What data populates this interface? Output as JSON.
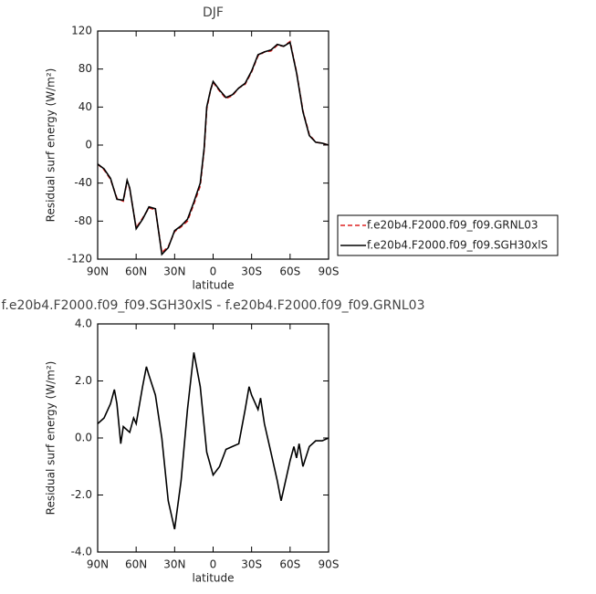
{
  "chart_data": [
    {
      "type": "line",
      "title": "DJF",
      "xlabel": "latitude",
      "ylabel": "Residual surf energy (W/m²)",
      "xlim": [
        90,
        -90
      ],
      "xticks": [
        {
          "value": 90,
          "label": "90N"
        },
        {
          "value": 60,
          "label": "60N"
        },
        {
          "value": 30,
          "label": "30N"
        },
        0,
        {
          "value": -30,
          "label": "30S"
        },
        {
          "value": -60,
          "label": "60S"
        },
        {
          "value": -90,
          "label": "90S"
        }
      ],
      "ylim": [
        -120,
        120
      ],
      "yticks": [
        -120,
        -80,
        -40,
        0,
        40,
        80,
        120
      ],
      "legend": "right",
      "x": [
        90,
        85,
        80,
        75,
        70,
        67,
        65,
        60,
        55,
        50,
        45,
        40,
        35,
        30,
        25,
        20,
        15,
        10,
        7,
        5,
        2,
        0,
        -5,
        -10,
        -15,
        -20,
        -25,
        -30,
        -35,
        -40,
        -45,
        -50,
        -55,
        -60,
        -65,
        -70,
        -75,
        -80,
        -85,
        -90
      ],
      "series": [
        {
          "name": "f.e20b4.F2000.f09_f09.GRNL03",
          "color": "#dd2222",
          "dashed": true,
          "values": [
            -20,
            -26,
            -36,
            -56,
            -59,
            -38,
            -46,
            -87,
            -77,
            -66,
            -68,
            -113,
            -107,
            -91,
            -86,
            -80,
            -62,
            -43,
            -5,
            38,
            58,
            66,
            57,
            49,
            52,
            60,
            64,
            77,
            94,
            98,
            99,
            105,
            104,
            109,
            77,
            36,
            11,
            3,
            2,
            0
          ]
        },
        {
          "name": "f.e20b4.F2000.f09_f09.SGH30xlS",
          "color": "#000000",
          "dashed": false,
          "values": [
            -20,
            -25,
            -35,
            -57,
            -58,
            -37,
            -45,
            -88,
            -78,
            -65,
            -67,
            -115,
            -108,
            -90,
            -85,
            -78,
            -60,
            -40,
            -3,
            40,
            58,
            67,
            58,
            50,
            53,
            60,
            65,
            78,
            95,
            98,
            100,
            106,
            104,
            108,
            76,
            35,
            10,
            3,
            2,
            0
          ]
        }
      ]
    },
    {
      "type": "line",
      "title": "f.e20b4.F2000.f09_f09.SGH30xlS - f.e20b4.F2000.f09_f09.GRNL03",
      "xlabel": "latitude",
      "ylabel": "Residual surf energy (W/m²)",
      "xlim": [
        90,
        -90
      ],
      "xticks": [
        {
          "value": 90,
          "label": "90N"
        },
        {
          "value": 60,
          "label": "60N"
        },
        {
          "value": 30,
          "label": "30N"
        },
        0,
        {
          "value": -30,
          "label": "30S"
        },
        {
          "value": -60,
          "label": "60S"
        },
        {
          "value": -90,
          "label": "90S"
        }
      ],
      "ylim": [
        -4,
        4
      ],
      "yticks": [
        {
          "value": -4,
          "label": "-4.0"
        },
        {
          "value": -2,
          "label": "-2.0"
        },
        {
          "value": 0,
          "label": "0.0"
        },
        {
          "value": 2,
          "label": "2.0"
        },
        {
          "value": 4,
          "label": "4.0"
        }
      ],
      "x": [
        90,
        85,
        80,
        77,
        75,
        72,
        70,
        65,
        62,
        60,
        55,
        52,
        50,
        45,
        40,
        35,
        30,
        25,
        20,
        15,
        10,
        5,
        0,
        -5,
        -10,
        -15,
        -20,
        -25,
        -28,
        -30,
        -35,
        -37,
        -40,
        -45,
        -50,
        -53,
        -55,
        -60,
        -63,
        -65,
        -67,
        -70,
        -75,
        -80,
        -85,
        -90
      ],
      "series": [
        {
          "name": null,
          "color": "#000000",
          "dashed": false,
          "values": [
            0.5,
            0.7,
            1.2,
            1.7,
            1.2,
            -0.2,
            0.4,
            0.2,
            0.7,
            0.5,
            1.8,
            2.5,
            2.2,
            1.5,
            0.0,
            -2.2,
            -3.2,
            -1.5,
            1.0,
            3.0,
            1.8,
            -0.5,
            -1.3,
            -1.0,
            -0.4,
            -0.3,
            -0.2,
            1.0,
            1.8,
            1.5,
            1.0,
            1.4,
            0.5,
            -0.5,
            -1.5,
            -2.2,
            -1.8,
            -0.8,
            -0.3,
            -0.7,
            -0.2,
            -1.0,
            -0.3,
            -0.1,
            -0.1,
            0.0
          ]
        }
      ]
    }
  ]
}
